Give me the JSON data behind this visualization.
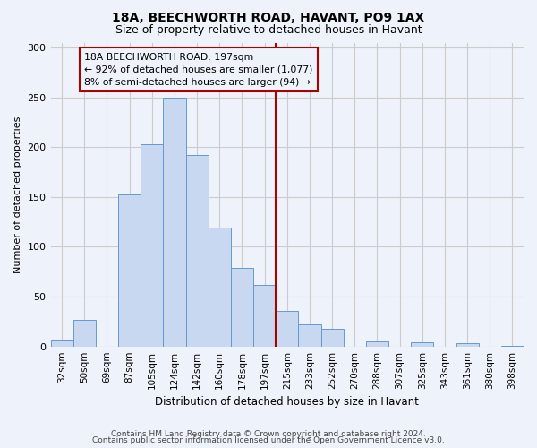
{
  "title1": "18A, BEECHWORTH ROAD, HAVANT, PO9 1AX",
  "title2": "Size of property relative to detached houses in Havant",
  "xlabel": "Distribution of detached houses by size in Havant",
  "ylabel": "Number of detached properties",
  "bin_labels": [
    "32sqm",
    "50sqm",
    "69sqm",
    "87sqm",
    "105sqm",
    "124sqm",
    "142sqm",
    "160sqm",
    "178sqm",
    "197sqm",
    "215sqm",
    "233sqm",
    "252sqm",
    "270sqm",
    "288sqm",
    "307sqm",
    "325sqm",
    "343sqm",
    "361sqm",
    "380sqm",
    "398sqm"
  ],
  "bar_heights": [
    6,
    27,
    0,
    153,
    203,
    250,
    192,
    119,
    79,
    62,
    36,
    22,
    18,
    0,
    5,
    0,
    4,
    0,
    3,
    0,
    1
  ],
  "bar_color": "#C8D8F0",
  "bar_edge_color": "#6699CC",
  "vline_color": "#AA0000",
  "vline_index": 9,
  "annotation_text": "18A BEECHWORTH ROAD: 197sqm\n← 92% of detached houses are smaller (1,077)\n8% of semi-detached houses are larger (94) →",
  "annotation_box_edge": "#AA0000",
  "ylim": [
    0,
    305
  ],
  "yticks": [
    0,
    50,
    100,
    150,
    200,
    250,
    300
  ],
  "footer1": "Contains HM Land Registry data © Crown copyright and database right 2024.",
  "footer2": "Contains public sector information licensed under the Open Government Licence v3.0.",
  "bg_color": "#EEF2FA",
  "grid_color": "#CCCCCC",
  "title_fontsize": 10,
  "subtitle_fontsize": 9,
  "ylabel_fontsize": 8,
  "xlabel_fontsize": 8.5,
  "tick_fontsize": 7.5,
  "footer_fontsize": 6.5
}
